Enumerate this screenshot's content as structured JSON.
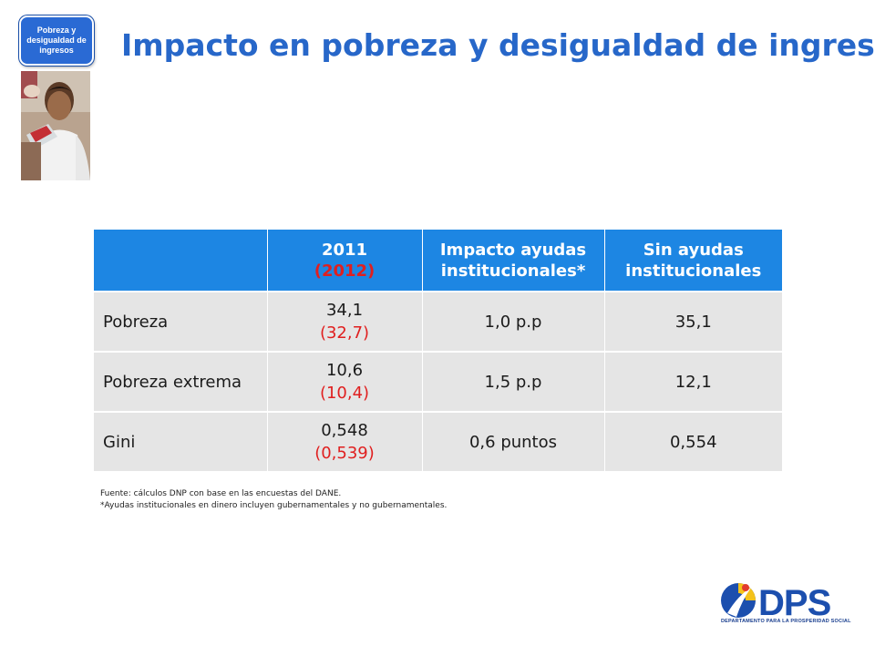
{
  "badge": {
    "label": "Pobreza y desigualdad de ingresos"
  },
  "title": "Impacto en pobreza y desigualdad de ingresos",
  "table": {
    "headers": [
      {
        "main": "",
        "sub": ""
      },
      {
        "main": "2011",
        "sub": "(2012)"
      },
      {
        "main": "Impacto ayudas institucionales*",
        "sub": ""
      },
      {
        "main": "Sin ayudas institucionales",
        "sub": ""
      }
    ],
    "rows": [
      {
        "label": "Pobreza",
        "val2011": "34,1",
        "val2012": "(32,7)",
        "impact": "1,0 p.p",
        "without": "35,1"
      },
      {
        "label": "Pobreza extrema",
        "val2011": "10,6",
        "val2012": "(10,4)",
        "impact": "1,5 p.p",
        "without": "12,1"
      },
      {
        "label": "Gini",
        "val2011": "0,548",
        "val2012": "(0,539)",
        "impact": "0,6 puntos",
        "without": "0,554"
      }
    ]
  },
  "footnotes": {
    "source": "Fuente: cálculos DNP con base en las encuestas del DANE.",
    "note": "*Ayudas institucionales en dinero incluyen gubernamentales y no gubernamentales."
  },
  "logo": {
    "text": "DPS",
    "tagline": "DEPARTAMENTO PARA LA PROSPERIDAD SOCIAL"
  },
  "colors": {
    "title": "#2767c9",
    "header_bg": "#1d86e3",
    "cell_bg": "#e5e5e5",
    "highlight": "#e01f1f",
    "badge_bg": "#2a6ad4"
  }
}
